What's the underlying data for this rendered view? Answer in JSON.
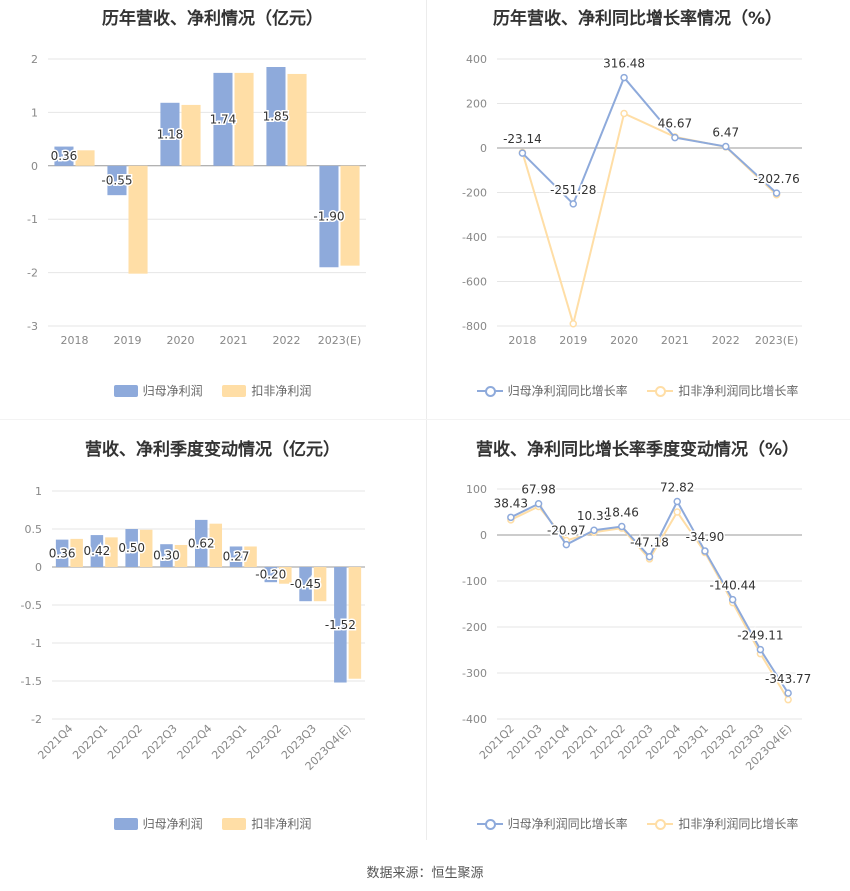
{
  "colors": {
    "blue": "#8eaadb",
    "orange": "#ffdea6",
    "blue_line": "#8eaadb",
    "orange_line": "#ffdea6"
  },
  "source": "数据来源：恒生聚源",
  "chart_data": [
    {
      "type": "bar",
      "title": "历年营收、净利情况（亿元）",
      "categories": [
        "2018",
        "2019",
        "2020",
        "2021",
        "2022",
        "2023(E)"
      ],
      "series": [
        {
          "name": "归母净利润",
          "values": [
            0.36,
            -0.55,
            1.18,
            1.74,
            1.85,
            -1.9
          ]
        },
        {
          "name": "扣非净利润",
          "values": [
            0.29,
            -2.02,
            1.14,
            1.74,
            1.72,
            -1.87
          ]
        }
      ],
      "data_labels": [
        "0.36",
        "-0.55",
        "1.18",
        "1.74",
        "1.85",
        "-1.90"
      ],
      "y_ticks": [
        "2",
        "1",
        "0",
        "-1",
        "-2",
        "-3"
      ],
      "ylim": [
        -3,
        2
      ],
      "grid": true,
      "legend_position": "bottom"
    },
    {
      "type": "line",
      "title": "历年营收、净利同比增长率情况（%）",
      "categories": [
        "2018",
        "2019",
        "2020",
        "2021",
        "2022",
        "2023(E)"
      ],
      "series": [
        {
          "name": "归母净利润同比增长率",
          "values": [
            -23.14,
            -251.28,
            316.48,
            46.67,
            6.47,
            -202.76
          ]
        },
        {
          "name": "扣非净利润同比增长率",
          "values": [
            -20,
            -790,
            155,
            50,
            5,
            -210
          ]
        }
      ],
      "data_labels": [
        "-23.14",
        "-251.28",
        "316.48",
        "46.67",
        "6.47",
        "-202.76"
      ],
      "y_ticks": [
        "400",
        "200",
        "0",
        "-200",
        "-400",
        "-600",
        "-800"
      ],
      "ylim": [
        -800,
        400
      ],
      "grid": true,
      "legend_position": "bottom"
    },
    {
      "type": "bar",
      "title": "营收、净利季度变动情况（亿元）",
      "categories": [
        "2021Q4",
        "2022Q1",
        "2022Q2",
        "2022Q3",
        "2022Q4",
        "2023Q1",
        "2023Q2",
        "2023Q3",
        "2023Q4(E)"
      ],
      "series": [
        {
          "name": "归母净利润",
          "values": [
            0.36,
            0.42,
            0.5,
            0.3,
            0.62,
            0.27,
            -0.2,
            -0.45,
            -1.52
          ]
        },
        {
          "name": "扣非净利润",
          "values": [
            0.37,
            0.39,
            0.49,
            0.29,
            0.57,
            0.27,
            -0.22,
            -0.45,
            -1.47
          ]
        }
      ],
      "data_labels": [
        "0.36",
        "0.42",
        "0.50",
        "0.30",
        "0.62",
        "0.27",
        "-0.20",
        "-0.45",
        "-1.52"
      ],
      "y_ticks": [
        "1",
        "0.5",
        "0",
        "-0.5",
        "-1",
        "-1.5",
        "-2"
      ],
      "ylim": [
        -2,
        1
      ],
      "grid": true,
      "legend_position": "bottom"
    },
    {
      "type": "line",
      "title": "营收、净利同比增长率季度变动情况（%）",
      "categories": [
        "2021Q2",
        "2021Q3",
        "2021Q4",
        "2022Q1",
        "2022Q2",
        "2022Q3",
        "2022Q4",
        "2023Q1",
        "2023Q2",
        "2023Q3",
        "2023Q4(E)"
      ],
      "series": [
        {
          "name": "归母净利润同比增长率",
          "values": [
            38.43,
            67.98,
            -20.97,
            10.38,
            18.46,
            -47.18,
            72.82,
            -34.9,
            -140.44,
            -249.11,
            -343.77
          ]
        },
        {
          "name": "扣非净利润同比增长率",
          "values": [
            33,
            62,
            -12,
            6,
            15,
            -52,
            50,
            -38,
            -147,
            -258,
            -358
          ]
        }
      ],
      "data_labels": [
        "38.43",
        "67.98",
        "-20.97",
        "10.38",
        "18.46",
        "-47.18",
        "72.82",
        "-34.90",
        "-140.44",
        "-249.11",
        "-343.77"
      ],
      "y_ticks": [
        "100",
        "0",
        "-100",
        "-200",
        "-300",
        "-400"
      ],
      "ylim": [
        -400,
        100
      ],
      "grid": true,
      "legend_position": "bottom"
    }
  ]
}
